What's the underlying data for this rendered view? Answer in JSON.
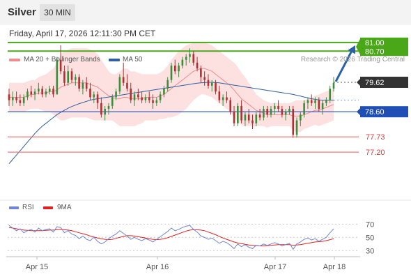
{
  "header": {
    "title": "Silver",
    "timeframe": "30 MIN"
  },
  "datetime": "Friday, April 17, 2026 12:11:30 PM CET",
  "legend": {
    "ma20_label": "MA 20 + Bollinger Bands",
    "ma20_color": "#f08c8c",
    "ma50_label": "MA 50",
    "ma50_color": "#2f5f9e",
    "rsi_label": "RSI",
    "rsi_color": "#6f86d6",
    "rsi_ma_label": "9MA",
    "rsi_ma_color": "#e02020"
  },
  "copyright": "Research © 2026 Trading Central",
  "colors": {
    "up": "#3c8c3c",
    "down": "#b03030",
    "resistance": "#4aa818",
    "support_line": "#1f4fb4",
    "target_line": "#f07878",
    "arrow": "#2b5fa8",
    "band_fill": "#fcd6d6",
    "current_tag": "#333333"
  },
  "chart_data": [
    {
      "type": "candlestick",
      "title": "Silver",
      "timeframe": "30 MIN",
      "x_ticks": [
        "Apr 15",
        "Apr 16",
        "Apr 17",
        "Apr 18"
      ],
      "ylim": [
        75.8,
        81.6
      ],
      "current_price": "79.62",
      "levels": [
        {
          "name": "resistance-2",
          "value": "81.00",
          "style": "resistance"
        },
        {
          "name": "resistance-1",
          "value": "80.70",
          "style": "resistance"
        },
        {
          "name": "pivot",
          "value": "78.60",
          "style": "pivot"
        },
        {
          "name": "support-1",
          "value": "77.73",
          "style": "target"
        },
        {
          "name": "support-2",
          "value": "77.20",
          "style": "target"
        }
      ],
      "forecast_arrow": {
        "from": 79.62,
        "to": 80.9
      },
      "ohlc": [
        [
          79.2,
          79.4,
          78.8,
          79.0
        ],
        [
          79.0,
          79.3,
          78.8,
          79.1
        ],
        [
          79.1,
          79.3,
          78.9,
          79.0
        ],
        [
          79.0,
          79.2,
          78.8,
          78.9
        ],
        [
          78.9,
          79.2,
          78.8,
          79.1
        ],
        [
          79.1,
          79.4,
          79.0,
          79.3
        ],
        [
          79.3,
          79.5,
          79.1,
          79.2
        ],
        [
          79.2,
          79.4,
          79.0,
          79.3
        ],
        [
          79.3,
          79.6,
          79.2,
          79.4
        ],
        [
          79.4,
          79.5,
          79.1,
          79.2
        ],
        [
          79.2,
          79.4,
          79.1,
          79.3
        ],
        [
          79.3,
          79.5,
          79.2,
          79.4
        ],
        [
          79.4,
          79.5,
          79.1,
          79.2
        ],
        [
          79.2,
          80.5,
          79.2,
          80.4
        ],
        [
          80.4,
          80.9,
          79.9,
          80.0
        ],
        [
          80.0,
          80.2,
          79.5,
          79.6
        ],
        [
          79.6,
          80.2,
          79.5,
          80.0
        ],
        [
          80.0,
          80.1,
          79.6,
          79.7
        ],
        [
          79.7,
          79.9,
          79.5,
          79.8
        ],
        [
          79.8,
          79.9,
          79.3,
          79.4
        ],
        [
          79.4,
          79.7,
          79.2,
          79.6
        ],
        [
          79.6,
          79.8,
          79.3,
          79.4
        ],
        [
          79.4,
          79.6,
          79.0,
          79.1
        ],
        [
          79.1,
          79.3,
          78.9,
          79.2
        ],
        [
          79.2,
          79.3,
          78.7,
          78.9
        ],
        [
          78.9,
          79.1,
          78.4,
          78.5
        ],
        [
          78.5,
          78.8,
          78.3,
          78.7
        ],
        [
          78.7,
          78.9,
          78.5,
          78.8
        ],
        [
          78.8,
          79.2,
          78.7,
          79.1
        ],
        [
          79.1,
          79.4,
          79.0,
          79.3
        ],
        [
          79.3,
          79.9,
          79.2,
          79.8
        ],
        [
          79.8,
          80.3,
          79.5,
          79.6
        ],
        [
          79.6,
          79.9,
          79.3,
          79.4
        ],
        [
          79.4,
          79.6,
          78.9,
          79.0
        ],
        [
          79.0,
          79.3,
          78.8,
          79.2
        ],
        [
          79.2,
          79.4,
          79.0,
          79.1
        ],
        [
          79.1,
          79.3,
          78.9,
          79.0
        ],
        [
          79.0,
          79.2,
          78.9,
          79.1
        ],
        [
          79.1,
          79.3,
          78.9,
          79.0
        ],
        [
          79.0,
          79.2,
          78.7,
          78.9
        ],
        [
          78.9,
          79.1,
          78.8,
          79.0
        ],
        [
          79.0,
          79.3,
          78.9,
          79.2
        ],
        [
          79.2,
          79.5,
          79.1,
          79.4
        ],
        [
          79.4,
          79.8,
          79.3,
          79.7
        ],
        [
          79.7,
          80.3,
          79.6,
          80.2
        ],
        [
          80.2,
          80.4,
          79.9,
          80.0
        ],
        [
          80.0,
          80.3,
          79.8,
          80.2
        ],
        [
          80.2,
          80.5,
          80.1,
          80.4
        ],
        [
          80.4,
          80.6,
          80.2,
          80.5
        ],
        [
          80.5,
          80.8,
          80.3,
          80.6
        ],
        [
          80.6,
          80.7,
          80.2,
          80.3
        ],
        [
          80.3,
          80.5,
          80.0,
          80.1
        ],
        [
          80.1,
          80.2,
          79.6,
          79.8
        ],
        [
          79.8,
          80.0,
          79.5,
          79.7
        ],
        [
          79.7,
          79.9,
          79.4,
          79.5
        ],
        [
          79.5,
          79.7,
          79.3,
          79.6
        ],
        [
          79.6,
          79.7,
          79.2,
          79.3
        ],
        [
          79.3,
          79.5,
          78.9,
          79.0
        ],
        [
          79.0,
          79.2,
          78.8,
          79.1
        ],
        [
          79.1,
          79.3,
          78.9,
          79.0
        ],
        [
          79.0,
          79.1,
          78.5,
          78.6
        ],
        [
          78.6,
          78.8,
          78.1,
          78.2
        ],
        [
          78.2,
          78.9,
          78.1,
          78.8
        ],
        [
          78.8,
          79.0,
          78.2,
          78.3
        ],
        [
          78.3,
          78.6,
          78.1,
          78.5
        ],
        [
          78.5,
          78.7,
          78.2,
          78.3
        ],
        [
          78.3,
          78.5,
          78.0,
          78.2
        ],
        [
          78.2,
          78.6,
          78.1,
          78.5
        ],
        [
          78.5,
          78.7,
          78.3,
          78.4
        ],
        [
          78.4,
          78.8,
          78.3,
          78.7
        ],
        [
          78.7,
          78.8,
          78.4,
          78.5
        ],
        [
          78.5,
          78.8,
          78.4,
          78.7
        ],
        [
          78.7,
          78.9,
          78.5,
          78.8
        ],
        [
          78.8,
          79.0,
          78.6,
          78.7
        ],
        [
          78.7,
          78.8,
          78.4,
          78.5
        ],
        [
          78.5,
          78.7,
          78.3,
          78.6
        ],
        [
          78.6,
          78.8,
          78.5,
          78.7
        ],
        [
          78.7,
          78.8,
          77.7,
          77.8
        ],
        [
          77.8,
          78.4,
          77.7,
          78.3
        ],
        [
          78.3,
          78.6,
          78.1,
          78.5
        ],
        [
          78.5,
          79.0,
          78.4,
          78.9
        ],
        [
          78.9,
          79.1,
          78.7,
          79.0
        ],
        [
          79.0,
          79.2,
          78.8,
          78.9
        ],
        [
          78.9,
          79.1,
          78.7,
          79.0
        ],
        [
          79.0,
          79.1,
          78.6,
          78.7
        ],
        [
          78.7,
          79.0,
          78.5,
          78.9
        ],
        [
          78.9,
          79.1,
          78.8,
          79.0
        ],
        [
          79.0,
          79.5,
          78.9,
          79.4
        ],
        [
          79.4,
          79.8,
          79.3,
          79.6
        ]
      ],
      "ma20": [
        79.1,
        79.1,
        79.1,
        79.1,
        79.1,
        79.15,
        79.2,
        79.2,
        79.25,
        79.25,
        79.25,
        79.3,
        79.3,
        79.35,
        79.45,
        79.5,
        79.55,
        79.6,
        79.6,
        79.6,
        79.6,
        79.6,
        79.55,
        79.5,
        79.45,
        79.35,
        79.25,
        79.15,
        79.1,
        79.05,
        79.05,
        79.1,
        79.1,
        79.05,
        79.05,
        79.05,
        79.05,
        79.1,
        79.1,
        79.1,
        79.1,
        79.15,
        79.2,
        79.3,
        79.4,
        79.5,
        79.6,
        79.7,
        79.8,
        79.9,
        80.0,
        80.05,
        80.1,
        80.1,
        80.05,
        80.0,
        79.9,
        79.8,
        79.7,
        79.6,
        79.5,
        79.35,
        79.2,
        79.05,
        78.95,
        78.85,
        78.75,
        78.65,
        78.6,
        78.55,
        78.5,
        78.5,
        78.5,
        78.5,
        78.5,
        78.5,
        78.5,
        78.45,
        78.45,
        78.45,
        78.5,
        78.55,
        78.6,
        78.65,
        78.65,
        78.7,
        78.75,
        78.8,
        78.85
      ],
      "bb_upper": [
        79.6,
        79.6,
        79.6,
        79.6,
        79.6,
        79.65,
        79.7,
        79.7,
        79.8,
        79.85,
        79.9,
        80.0,
        80.1,
        80.3,
        80.6,
        80.7,
        80.75,
        80.8,
        80.8,
        80.8,
        80.8,
        80.8,
        80.75,
        80.7,
        80.6,
        80.4,
        80.2,
        80.0,
        79.9,
        79.9,
        80.0,
        80.1,
        80.1,
        80.0,
        80.0,
        79.95,
        79.9,
        79.9,
        79.9,
        79.9,
        79.9,
        79.95,
        80.05,
        80.2,
        80.4,
        80.55,
        80.7,
        80.8,
        80.9,
        80.95,
        81.0,
        81.0,
        81.0,
        81.0,
        80.95,
        80.9,
        80.8,
        80.7,
        80.6,
        80.5,
        80.4,
        80.3,
        80.15,
        79.95,
        79.8,
        79.6,
        79.4,
        79.2,
        79.1,
        79.0,
        78.95,
        78.9,
        78.9,
        78.9,
        78.9,
        78.9,
        78.9,
        78.95,
        79.0,
        79.0,
        79.0,
        79.05,
        79.1,
        79.15,
        79.2,
        79.25,
        79.3,
        79.35,
        79.4
      ],
      "bb_lower": [
        78.6,
        78.6,
        78.6,
        78.6,
        78.6,
        78.65,
        78.7,
        78.7,
        78.7,
        78.65,
        78.6,
        78.6,
        78.5,
        78.4,
        78.3,
        78.3,
        78.35,
        78.4,
        78.4,
        78.4,
        78.4,
        78.4,
        78.35,
        78.3,
        78.3,
        78.3,
        78.3,
        78.3,
        78.3,
        78.2,
        78.1,
        78.1,
        78.1,
        78.1,
        78.1,
        78.15,
        78.2,
        78.3,
        78.3,
        78.3,
        78.3,
        78.35,
        78.35,
        78.4,
        78.4,
        78.45,
        78.5,
        78.6,
        78.7,
        78.85,
        79.0,
        79.1,
        79.2,
        79.2,
        79.15,
        79.1,
        79.0,
        78.9,
        78.8,
        78.7,
        78.6,
        78.4,
        78.25,
        78.15,
        78.1,
        78.1,
        78.1,
        78.1,
        78.1,
        78.1,
        78.05,
        78.1,
        78.1,
        78.1,
        78.1,
        78.1,
        78.1,
        77.95,
        77.9,
        77.9,
        78.0,
        78.05,
        78.1,
        78.15,
        78.1,
        78.15,
        78.2,
        78.25,
        78.3
      ],
      "ma50": [
        76.8,
        76.95,
        77.1,
        77.25,
        77.4,
        77.55,
        77.7,
        77.85,
        77.98,
        78.1,
        78.2,
        78.3,
        78.4,
        78.5,
        78.58,
        78.65,
        78.72,
        78.78,
        78.83,
        78.88,
        78.92,
        78.96,
        79.0,
        79.03,
        79.05,
        79.07,
        79.09,
        79.11,
        79.13,
        79.15,
        79.17,
        79.19,
        79.21,
        79.23,
        79.25,
        79.27,
        79.29,
        79.31,
        79.33,
        79.35,
        79.37,
        79.39,
        79.41,
        79.43,
        79.45,
        79.47,
        79.49,
        79.51,
        79.53,
        79.55,
        79.57,
        79.59,
        79.6,
        79.61,
        79.62,
        79.62,
        79.61,
        79.6,
        79.58,
        79.56,
        79.54,
        79.52,
        79.5,
        79.48,
        79.46,
        79.44,
        79.42,
        79.4,
        79.38,
        79.36,
        79.34,
        79.32,
        79.3,
        79.28,
        79.26,
        79.24,
        79.22,
        79.2,
        79.17,
        79.14,
        79.11,
        79.08,
        79.05,
        79.03,
        79.01,
        79.0,
        79.0,
        79.0,
        79.0
      ]
    },
    {
      "type": "line",
      "title": "RSI",
      "y_ticks": [
        "70",
        "50",
        "30"
      ],
      "ylim": [
        20,
        80
      ],
      "series": [
        {
          "name": "RSI",
          "values": [
            68,
            64,
            60,
            63,
            57,
            60,
            62,
            58,
            64,
            60,
            62,
            63,
            58,
            66,
            65,
            57,
            60,
            55,
            53,
            48,
            52,
            47,
            45,
            50,
            44,
            40,
            43,
            48,
            52,
            55,
            60,
            56,
            52,
            47,
            50,
            47,
            45,
            48,
            46,
            43,
            47,
            51,
            55,
            59,
            64,
            60,
            62,
            65,
            67,
            68,
            62,
            58,
            52,
            50,
            47,
            49,
            45,
            41,
            44,
            42,
            38,
            33,
            40,
            36,
            39,
            35,
            33,
            38,
            37,
            40,
            38,
            40,
            42,
            40,
            37,
            39,
            41,
            32,
            40,
            43,
            47,
            49,
            46,
            48,
            44,
            47,
            50,
            57,
            63
          ]
        },
        {
          "name": "9MA",
          "values": [
            65,
            64,
            63,
            62,
            61,
            60.5,
            60,
            60,
            60,
            60,
            60.5,
            61,
            61,
            61.5,
            62,
            61.5,
            61,
            60,
            58.5,
            57,
            55.5,
            54,
            52,
            50.5,
            49,
            48,
            47,
            46.5,
            47,
            48.5,
            50,
            51.5,
            52.5,
            52.5,
            52,
            51,
            50,
            49,
            48,
            47,
            46.5,
            47,
            48,
            49.5,
            51.5,
            53.5,
            55.5,
            57.5,
            59.5,
            61,
            61.5,
            61.5,
            61,
            60,
            58,
            56,
            54,
            51.5,
            49,
            47,
            45,
            43,
            41.5,
            40.5,
            39.5,
            38.5,
            38,
            37.5,
            37,
            37,
            37.5,
            38,
            38.5,
            39,
            39,
            39,
            39,
            38,
            38.5,
            39,
            40,
            41,
            42,
            43,
            43.5,
            44,
            45,
            46.5,
            48
          ]
        }
      ]
    }
  ]
}
